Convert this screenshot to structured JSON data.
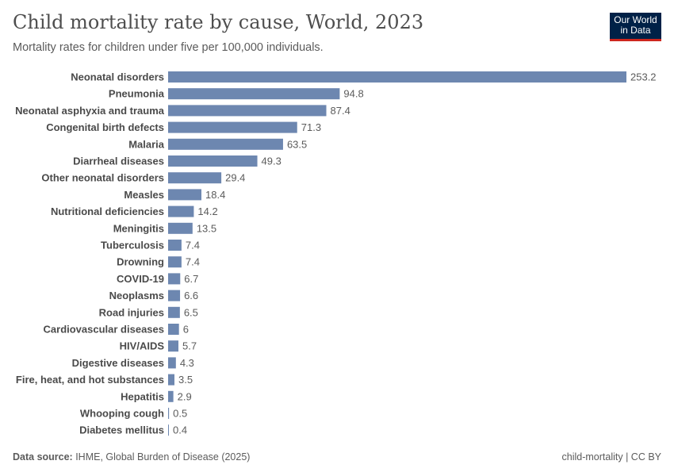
{
  "header": {
    "title": "Child mortality rate by cause, World, 2023",
    "subtitle": "Mortality rates for children under five per 100,000 individuals.",
    "logo_text": "Our World in Data"
  },
  "chart_data": {
    "type": "bar",
    "orientation": "horizontal",
    "categories": [
      "Neonatal disorders",
      "Pneumonia",
      "Neonatal asphyxia and trauma",
      "Congenital birth defects",
      "Malaria",
      "Diarrheal diseases",
      "Other neonatal disorders",
      "Measles",
      "Nutritional deficiencies",
      "Meningitis",
      "Tuberculosis",
      "Drowning",
      "COVID-19",
      "Neoplasms",
      "Road injuries",
      "Cardiovascular diseases",
      "HIV/AIDS",
      "Digestive diseases",
      "Fire, heat, and hot substances",
      "Hepatitis",
      "Whooping cough",
      "Diabetes mellitus"
    ],
    "values": [
      253.2,
      94.8,
      87.4,
      71.3,
      63.5,
      49.3,
      29.4,
      18.4,
      14.2,
      13.5,
      7.4,
      7.4,
      6.7,
      6.6,
      6.5,
      6,
      5.7,
      4.3,
      3.5,
      2.9,
      0.5,
      0.4
    ],
    "value_labels": [
      "253.2",
      "94.8",
      "87.4",
      "71.3",
      "63.5",
      "49.3",
      "29.4",
      "18.4",
      "14.2",
      "13.5",
      "7.4",
      "7.4",
      "6.7",
      "6.6",
      "6.5",
      "6",
      "5.7",
      "4.3",
      "3.5",
      "2.9",
      "0.5",
      "0.4"
    ],
    "bar_color": "#6d87b0",
    "grid": false
  },
  "footer": {
    "source_label": "Data source:",
    "source": " IHME, Global Burden of Disease (2025)",
    "license": "child-mortality | CC BY"
  }
}
